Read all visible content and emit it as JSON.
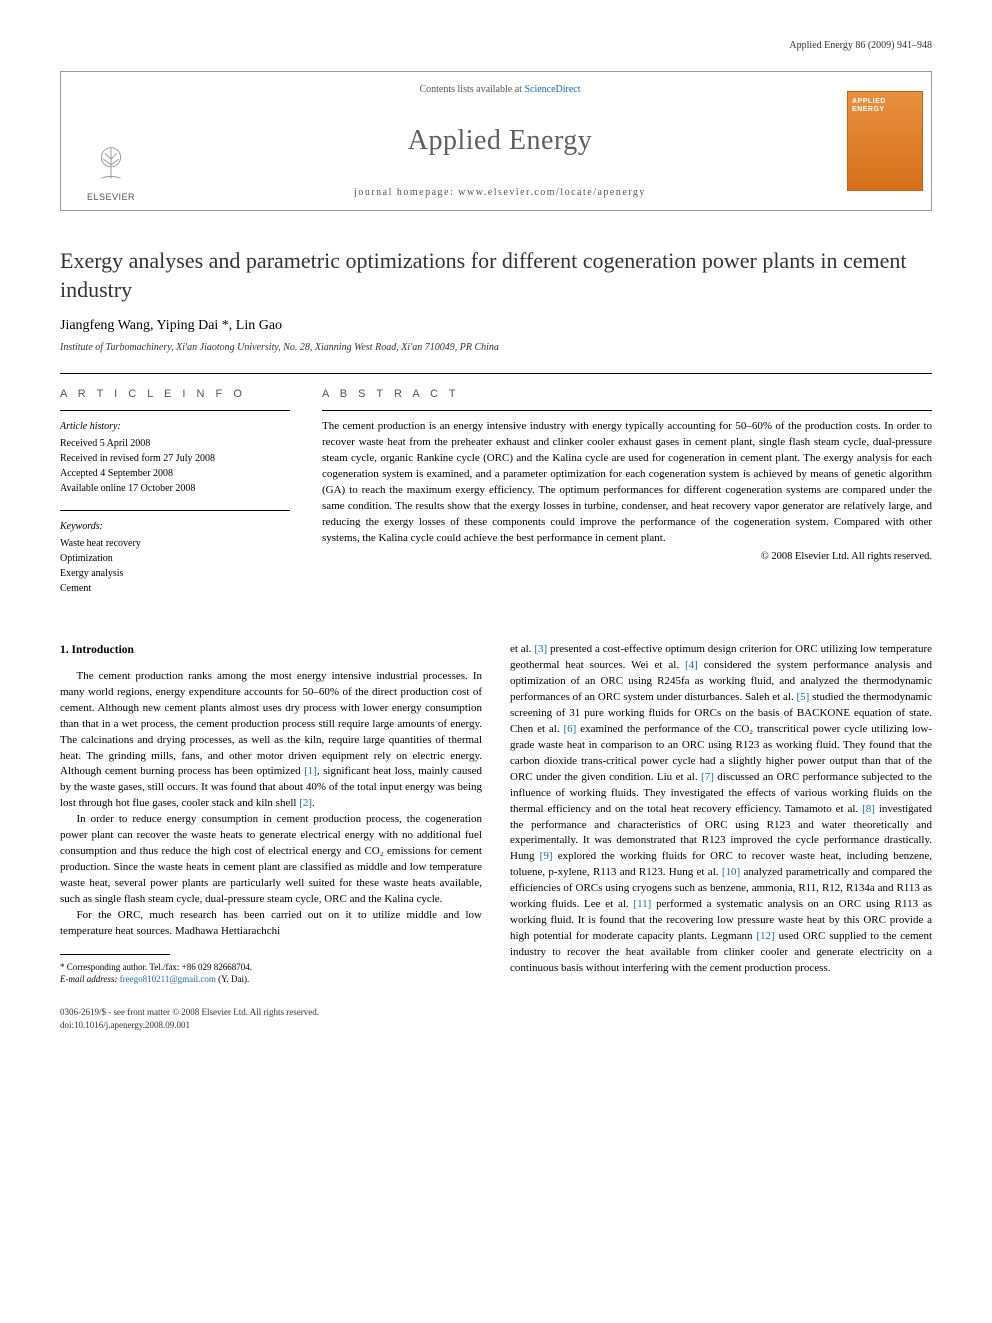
{
  "running_header": "Applied Energy 86 (2009) 941–948",
  "journal_box": {
    "contents_prefix": "Contents lists available at ",
    "contents_link": "ScienceDirect",
    "journal_name": "Applied Energy",
    "homepage_prefix": "journal homepage: ",
    "homepage_url": "www.elsevier.com/locate/apenergy",
    "publisher_name": "ELSEVIER",
    "cover_text_line1": "APPLIED",
    "cover_text_line2": "ENERGY"
  },
  "article": {
    "title": "Exergy analyses and parametric optimizations for different cogeneration power plants in cement industry",
    "authors_text": "Jiangfeng Wang, Yiping Dai *, Lin Gao",
    "affiliation": "Institute of Turbomachinery, Xi'an Jiaotong University, No. 28, Xianning West Road, Xi'an 710049, PR China"
  },
  "info": {
    "heading": "A R T I C L E   I N F O",
    "history_label": "Article history:",
    "history_lines": [
      "Received 5 April 2008",
      "Received in revised form 27 July 2008",
      "Accepted 4 September 2008",
      "Available online 17 October 2008"
    ],
    "keywords_label": "Keywords:",
    "keywords": [
      "Waste heat recovery",
      "Optimization",
      "Exergy analysis",
      "Cement"
    ]
  },
  "abstract": {
    "heading": "A B S T R A C T",
    "text": "The cement production is an energy intensive industry with energy typically accounting for 50–60% of the production costs. In order to recover waste heat from the preheater exhaust and clinker cooler exhaust gases in cement plant, single flash steam cycle, dual-pressure steam cycle, organic Rankine cycle (ORC) and the Kalina cycle are used for cogeneration in cement plant. The exergy analysis for each cogeneration system is examined, and a parameter optimization for each cogeneration system is achieved by means of genetic algorithm (GA) to reach the maximum exergy efficiency. The optimum performances for different cogeneration systems are compared under the same condition. The results show that the exergy losses in turbine, condenser, and heat recovery vapor generator are relatively large, and reducing the exergy losses of these components could improve the performance of the cogeneration system. Compared with other systems, the Kalina cycle could achieve the best performance in cement plant.",
    "copyright": "© 2008 Elsevier Ltd. All rights reserved."
  },
  "sections": {
    "intro_heading": "1. Introduction",
    "intro_p1": "The cement production ranks among the most energy intensive industrial processes. In many world regions, energy expenditure accounts for 50–60% of the direct production cost of cement. Although new cement plants almost uses dry process with lower energy consumption than that in a wet process, the cement production process still require large amounts of energy. The calcinations and drying processes, as well as the kiln, require large quantities of thermal heat. The grinding mills, fans, and other motor driven equipment rely on electric energy. Although cement burning process has been optimized [1], significant heat loss, mainly caused by the waste gases, still occurs. It was found that about 40% of the total input energy was being lost through hot flue gases, cooler stack and kiln shell [2].",
    "intro_p2": "In order to reduce energy consumption in cement production process, the cogeneration power plant can recover the waste heats to generate electrical energy with no additional fuel consumption and thus reduce the high cost of electrical energy and CO₂ emissions for cement production. Since the waste heats in cement plant are classified as middle and low temperature waste heat, several power plants are particularly well suited for these waste heats available, such as single flash steam cycle, dual-pressure steam cycle, ORC and the Kalina cycle.",
    "intro_p3": "For the ORC, much research has been carried out on it to utilize middle and low temperature heat sources. Madhawa Hettiarachchi",
    "intro_p4": "et al. [3] presented a cost-effective optimum design criterion for ORC utilizing low temperature geothermal heat sources. Wei et al. [4] considered the system performance analysis and optimization of an ORC using R245fa as working fluid, and analyzed the thermodynamic performances of an ORC system under disturbances. Saleh et al. [5] studied the thermodynamic screening of 31 pure working fluids for ORCs on the basis of BACKONE equation of state. Chen et al. [6] examined the performance of the CO₂ transcritical power cycle utilizing low-grade waste heat in comparison to an ORC using R123 as working fluid. They found that the carbon dioxide trans-critical power cycle had a slightly higher power output than that of the ORC under the given condition. Liu et al. [7] discussed an ORC performance subjected to the influence of working fluids. They investigated the effects of various working fluids on the thermal efficiency and on the total heat recovery efficiency. Tamamoto et al. [8] investigated the performance and characteristics of ORC using R123 and water theoretically and experimentally. It was demonstrated that R123 improved the cycle performance drastically. Hung [9] explored the working fluids for ORC to recover waste heat, including benzene, toluene, p-xylene, R113 and R123. Hung et al. [10] analyzed parametrically and compared the efficiencies of ORCs using cryogens such as benzene, ammonia, R11, R12, R134a and R113 as working fluids. Lee et al. [11] performed a systematic analysis on an ORC using R113 as working fluid. It is found that the recovering low pressure waste heat by this ORC provide a high potential for moderate capacity plants. Legmann [12] used ORC supplied to the cement industry to recover the heat available from clinker cooler and generate electricity on a continuous basis without interfering with the cement production process."
  },
  "footnote": {
    "corresponding": "* Corresponding author. Tel./fax: +86 029 82668704.",
    "email_label": "E-mail address:",
    "email_value": "freego810211@gmail.com",
    "email_who": "(Y. Dai)."
  },
  "footer": {
    "line1": "0306-2619/$ - see front matter © 2008 Elsevier Ltd. All rights reserved.",
    "line2": "doi:10.1016/j.apenergy.2008.09.001"
  },
  "colors": {
    "link": "#1a6bb5",
    "cover_top": "#e89040",
    "cover_bottom": "#d6701a",
    "elsevier_orange": "#ff8a00"
  }
}
